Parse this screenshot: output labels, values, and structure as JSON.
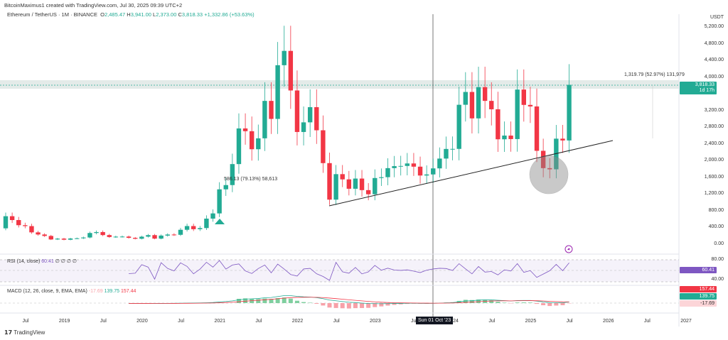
{
  "credit": "BitcoinMaximus1 created with TradingView.com, Jul 30, 2025 09:39 UTC+2",
  "symbol": {
    "name": "Ethereum / TetherUS · 1M · BINANCE",
    "o_label": "O",
    "o": "2,485.47",
    "h_label": "H",
    "h": "3,941.00",
    "l_label": "L",
    "l": "2,373.00",
    "c_label": "C",
    "c": "3,818.33",
    "change": "+1,332.86 (+53.63%)"
  },
  "price_axis": {
    "currency": "USDT",
    "ticks": [
      "5,200.00",
      "4,800.00",
      "4,400.00",
      "4,000.00",
      "3,200.00",
      "2,800.00",
      "2,400.00",
      "2,000.00",
      "1,600.00",
      "1,200.00",
      "800.00",
      "400.00",
      "0.00"
    ],
    "tick_values": [
      5200,
      4800,
      4400,
      4000,
      3200,
      2800,
      2400,
      2000,
      1600,
      1200,
      800,
      400,
      0
    ],
    "last_price": "3,818.33",
    "countdown": "1d 17h"
  },
  "measure_top": "1,319.79 (52.97%) 131,979",
  "measure_left": "586.13 (79.13%) 58,613",
  "rsi": {
    "title": "RSI (14, close)",
    "value": "60.41",
    "extra": "∅ ∅ ∅ ∅",
    "upper": "80.00",
    "lower": "40.00"
  },
  "macd": {
    "title": "MACD (12, 26, close, 9, EMA, EMA)",
    "hist": "-17.69",
    "macd": "139.75",
    "signal": "157.44"
  },
  "time_axis": {
    "labels": [
      "Jul",
      "2019",
      "Jul",
      "2020",
      "Jul",
      "2021",
      "Jul",
      "2022",
      "Jul",
      "2023",
      "Jul",
      "2024",
      "Jul",
      "2025",
      "Jul",
      "2026",
      "Jul",
      "2027"
    ],
    "crosshair": "Sun 01 Oct '23"
  },
  "footer": {
    "brand": "TradingView"
  },
  "colors": {
    "up": "#22ab94",
    "down": "#f23645",
    "rsi": "#7e57c2"
  },
  "chart_data": {
    "type": "candlestick",
    "start": "2018-04",
    "interval": "1M",
    "closes": [
      670,
      578,
      455,
      433,
      283,
      232,
      197,
      113,
      133,
      107,
      136,
      141,
      160,
      268,
      290,
      218,
      172,
      180,
      182,
      152,
      130,
      180,
      217,
      133,
      206,
      231,
      225,
      345,
      434,
      359,
      386,
      612,
      737,
      1314,
      1416,
      1919,
      2773,
      2707,
      2275,
      2536,
      3433,
      3001,
      4288,
      4631,
      3683,
      2688,
      2919,
      3283,
      2729,
      1942,
      1067,
      1678,
      1553,
      1328,
      1572,
      1295,
      1196,
      1585,
      1605,
      1822,
      1870,
      1874,
      1934,
      1857,
      1645,
      1671,
      1816,
      2051,
      2282,
      2283,
      3340,
      3647,
      3014,
      3763,
      3433,
      3232,
      2513,
      2602,
      2518,
      3705,
      3337,
      3300,
      2237,
      1822,
      1794,
      2528,
      2485,
      3818
    ],
    "first_open": 380
  }
}
